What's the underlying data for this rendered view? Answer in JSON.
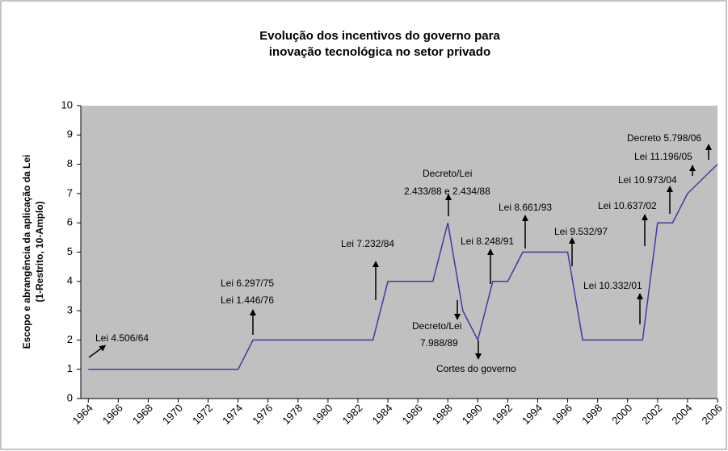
{
  "chart_data": {
    "type": "line",
    "title": [
      "Evolução dos incentivos do governo para",
      "inovação tecnológica no setor privado"
    ],
    "y_label": [
      "Escopo e abrangência da aplicação da Lei",
      "(1-Restrito, 10-Amplo)"
    ],
    "x": [
      1964,
      1974,
      1975,
      1983,
      1984,
      1987,
      1988,
      1989,
      1990,
      1991,
      1992,
      1993,
      1996,
      1997,
      2001,
      2002,
      2003,
      2004,
      2006
    ],
    "series": [
      {
        "color": "#3b3ba6",
        "values": [
          1,
          1,
          2,
          2,
          4,
          4,
          6,
          3,
          2,
          4,
          4,
          5,
          5,
          2,
          2,
          6,
          6,
          7,
          8
        ]
      }
    ],
    "xlim": [
      1963.5,
      2006
    ],
    "xticks": [
      1964,
      1966,
      1968,
      1970,
      1972,
      1974,
      1976,
      1978,
      1980,
      1982,
      1984,
      1986,
      1988,
      1990,
      1992,
      1994,
      1996,
      1998,
      2000,
      2002,
      2004,
      2006
    ],
    "ylim": [
      0,
      10
    ],
    "yticks": [
      0,
      1,
      2,
      3,
      4,
      5,
      6,
      7,
      8,
      9,
      10
    ],
    "grid": false,
    "annotations": [
      "Lei 4.506/64",
      "Lei 6.297/75",
      "Lei 1.446/76",
      "Lei 7.232/84",
      "Decreto/Lei",
      "2.433/88 e 2.434/88",
      "Decreto/Lei",
      "7.988/89",
      "Cortes do governo",
      "Lei 8.248/91",
      "Lei 8.661/93",
      "Lei 9.532/97",
      "Lei 10.332/01",
      "Lei 10.637/02",
      "Lei 10.973/04",
      "Lei 11.196/05",
      "Decreto 5.798/06"
    ]
  }
}
